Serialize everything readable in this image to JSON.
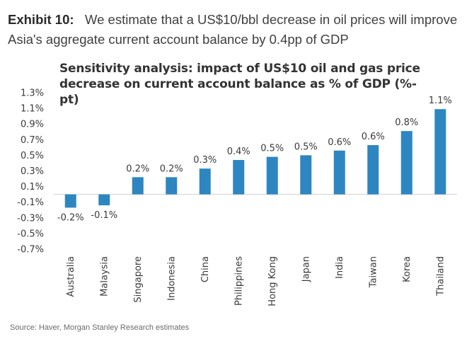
{
  "exhibit": {
    "label": "Exhibit 10:",
    "text": "We estimate that a US$10/bbl decrease in oil prices will improve Asia's aggregate current account balance by 0.4pp of GDP"
  },
  "source": "Source: Haver, Morgan Stanley Research estimates",
  "colors": {
    "bar": "#2e86c1",
    "axis": "#cfcfcf"
  },
  "chart_data": {
    "type": "bar",
    "title": "Sensitivity analysis: impact of US$10 oil and gas price decrease on current account balance as % of GDP (%-pt)",
    "xlabel": "",
    "ylabel": "",
    "categories": [
      "Australia",
      "Malaysia",
      "Singapore",
      "Indonesia",
      "China",
      "Philippines",
      "Hong Kong",
      "Japan",
      "India",
      "Taiwan",
      "Korea",
      "Thailand"
    ],
    "values": [
      -0.17,
      -0.14,
      0.22,
      0.22,
      0.33,
      0.44,
      0.48,
      0.5,
      0.56,
      0.63,
      0.81,
      1.09
    ],
    "data_labels": [
      "-0.2%",
      "-0.1%",
      "0.2%",
      "0.2%",
      "0.3%",
      "0.4%",
      "0.5%",
      "0.5%",
      "0.6%",
      "0.6%",
      "0.8%",
      "1.1%"
    ],
    "yticks": [
      "1.3%",
      "1.1%",
      "0.9%",
      "0.7%",
      "0.5%",
      "0.3%",
      "0.1%",
      "-0.1%",
      "-0.3%",
      "-0.5%",
      "-0.7%"
    ],
    "ytick_values": [
      1.3,
      1.1,
      0.9,
      0.7,
      0.5,
      0.3,
      0.1,
      -0.1,
      -0.3,
      -0.5,
      -0.7
    ],
    "ylim": [
      -0.7,
      1.3
    ],
    "grid": false,
    "legend": "none"
  }
}
